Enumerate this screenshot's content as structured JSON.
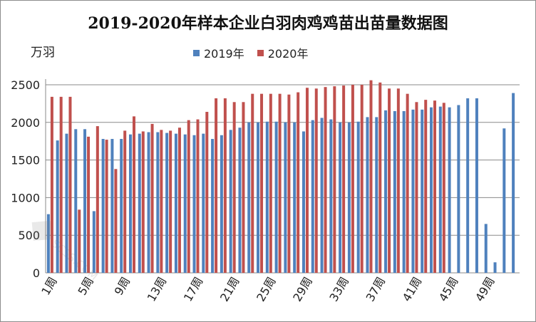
{
  "chart_data": {
    "type": "bar",
    "title": "2019-2020年样本企业白羽肉鸡鸡苗出苗量数据图",
    "ylabel": "万羽",
    "ylim": [
      0,
      2500
    ],
    "yticks": [
      0,
      500,
      1000,
      1500,
      2000,
      2500
    ],
    "grid": true,
    "legend_position": "top-center",
    "categories": [
      "1周",
      "2周",
      "3周",
      "4周",
      "5周",
      "6周",
      "7周",
      "8周",
      "9周",
      "10周",
      "11周",
      "12周",
      "13周",
      "14周",
      "15周",
      "16周",
      "17周",
      "18周",
      "19周",
      "20周",
      "21周",
      "22周",
      "23周",
      "24周",
      "25周",
      "26周",
      "27周",
      "28周",
      "29周",
      "30周",
      "31周",
      "32周",
      "33周",
      "34周",
      "35周",
      "36周",
      "37周",
      "38周",
      "39周",
      "40周",
      "41周",
      "42周",
      "43周",
      "44周",
      "45周",
      "46周",
      "47周",
      "48周",
      "49周",
      "50周",
      "51周",
      "52周"
    ],
    "tick_labels": [
      "1周",
      "5周",
      "9周",
      "13周",
      "17周",
      "21周",
      "25周",
      "29周",
      "33周",
      "37周",
      "41周",
      "45周",
      "49周"
    ],
    "series": [
      {
        "name": "2019年",
        "color": "#4f81bd",
        "values": [
          780,
          1760,
          1850,
          1910,
          1910,
          820,
          1780,
          1780,
          1780,
          1840,
          1850,
          1870,
          1870,
          1860,
          1850,
          1840,
          1830,
          1850,
          1780,
          1830,
          1900,
          1930,
          2000,
          2000,
          2010,
          2010,
          2000,
          2000,
          1880,
          2030,
          2060,
          2040,
          2000,
          2000,
          2010,
          2070,
          2070,
          2160,
          2150,
          2150,
          2170,
          2170,
          2200,
          2210,
          2200,
          2230,
          2320,
          2320,
          650,
          140,
          1920,
          2390
        ]
      },
      {
        "name": "2020年",
        "color": "#c0504d",
        "values": [
          2340,
          2340,
          2340,
          840,
          1810,
          1950,
          1770,
          1380,
          1890,
          2080,
          1880,
          1980,
          1900,
          1890,
          1930,
          2030,
          2040,
          2140,
          2320,
          2320,
          2270,
          2270,
          2380,
          2380,
          2380,
          2380,
          2370,
          2400,
          2460,
          2450,
          2470,
          2480,
          2490,
          2500,
          2500,
          2560,
          2530,
          2450,
          2450,
          2380,
          2270,
          2300,
          2290,
          2260,
          null,
          null,
          null,
          null,
          null,
          null,
          null,
          null
        ]
      }
    ],
    "watermark": "SCSS.COM"
  }
}
